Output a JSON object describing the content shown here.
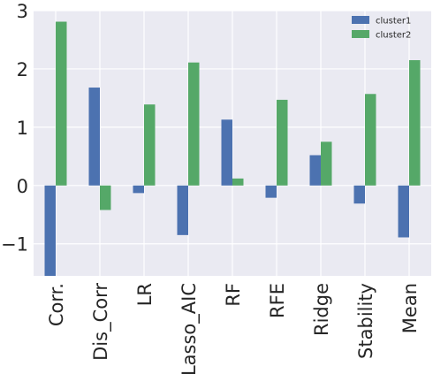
{
  "chart_data": {
    "type": "bar",
    "categories": [
      "Corr.",
      "Dis_Corr",
      "LR",
      "Lasso_AIC",
      "RF",
      "RFE",
      "Ridge",
      "Stability",
      "Mean"
    ],
    "series": [
      {
        "name": "cluster1",
        "color": "#4c72b0",
        "values": [
          -1.55,
          1.68,
          -0.13,
          -0.85,
          1.13,
          -0.21,
          0.52,
          -0.31,
          -0.89
        ]
      },
      {
        "name": "cluster2",
        "color": "#55a868",
        "values": [
          2.81,
          -0.42,
          1.39,
          2.11,
          0.12,
          1.47,
          0.75,
          1.57,
          2.15
        ]
      }
    ],
    "yticks": [
      -1,
      0,
      1,
      2,
      3
    ],
    "ylim": [
      -1.55,
      3.0
    ],
    "grid": true,
    "legend_position": "top-right",
    "background": "#eaeaf2",
    "grid_color": "#ffffff"
  }
}
